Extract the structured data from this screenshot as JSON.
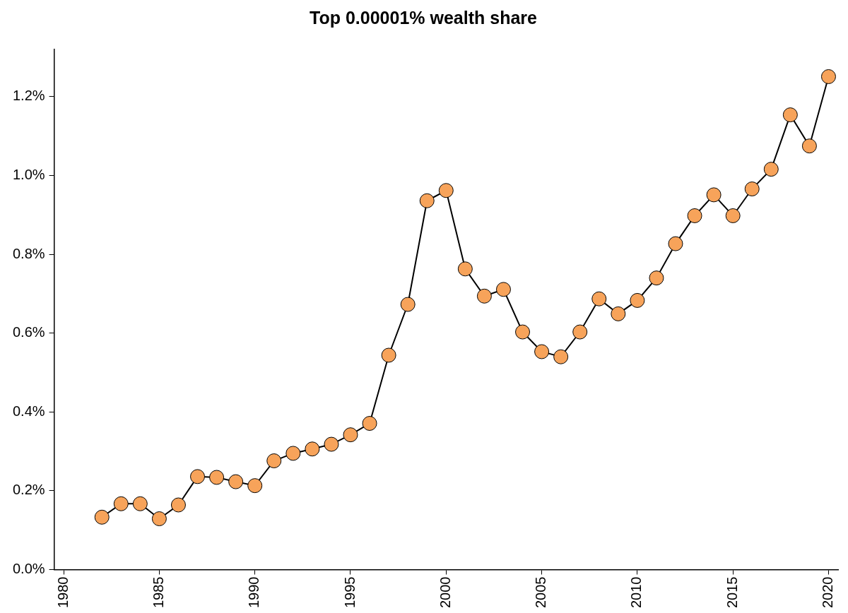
{
  "chart_data": {
    "type": "line",
    "title": "Top 0.00001% wealth share",
    "x": [
      1982,
      1983,
      1984,
      1985,
      1986,
      1987,
      1988,
      1989,
      1990,
      1991,
      1992,
      1993,
      1994,
      1995,
      1996,
      1997,
      1998,
      1999,
      2000,
      2001,
      2002,
      2003,
      2004,
      2005,
      2006,
      2007,
      2008,
      2009,
      2010,
      2011,
      2012,
      2013,
      2014,
      2015,
      2016,
      2017,
      2018,
      2019,
      2020
    ],
    "values": [
      0.133,
      0.167,
      0.167,
      0.129,
      0.164,
      0.236,
      0.234,
      0.223,
      0.213,
      0.276,
      0.295,
      0.306,
      0.318,
      0.342,
      0.371,
      0.544,
      0.673,
      0.936,
      0.962,
      0.763,
      0.694,
      0.711,
      0.603,
      0.553,
      0.54,
      0.603,
      0.687,
      0.649,
      0.683,
      0.74,
      0.827,
      0.898,
      0.951,
      0.898,
      0.966,
      1.016,
      1.154,
      1.075,
      1.251
    ],
    "color": "#f7a35a",
    "marker": "circle",
    "line_style": "solid",
    "xlim": [
      1979.5,
      2020.5
    ],
    "xticks": [
      1980,
      1985,
      1990,
      1995,
      2000,
      2005,
      2010,
      2015,
      2020
    ],
    "ylim": [
      0,
      1.32
    ],
    "yticks": [
      {
        "value": 0,
        "label": "0.0%"
      },
      {
        "value": 0.2,
        "label": "0.2%"
      },
      {
        "value": 0.4,
        "label": "0.4%"
      },
      {
        "value": 0.6,
        "label": "0.6%"
      },
      {
        "value": 0.8,
        "label": "0.8%"
      },
      {
        "value": 1.0,
        "label": "1.0%"
      },
      {
        "value": 1.2,
        "label": "1.2%"
      }
    ],
    "grid": false
  }
}
